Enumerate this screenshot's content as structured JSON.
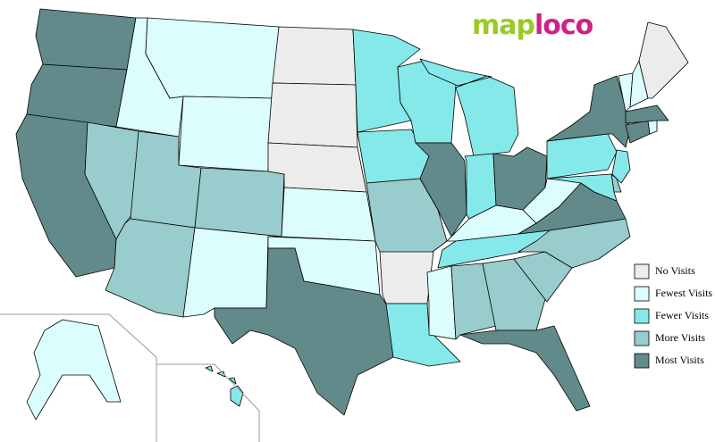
{
  "logo": [
    "map",
    "loco"
  ],
  "legend": [
    {
      "label": "No Visits",
      "color": "#ececec"
    },
    {
      "label": "Fewest Visits",
      "color": "#dcfdfd"
    },
    {
      "label": "Fewer Visits",
      "color": "#85e9e9"
    },
    {
      "label": "More Visits",
      "color": "#99cccc"
    },
    {
      "label": "Most Visits",
      "color": "#628a8a"
    }
  ],
  "regions": [
    4,
    4,
    4,
    1,
    3,
    1,
    1,
    3,
    3,
    3,
    1,
    0,
    0,
    0,
    1,
    1,
    4,
    2,
    2,
    3,
    0,
    2,
    2,
    4,
    2,
    2,
    4,
    1,
    2,
    1,
    3,
    3,
    4,
    3,
    3,
    4,
    1,
    2,
    4,
    2,
    3,
    2,
    4,
    1,
    4,
    1,
    1,
    0,
    1,
    2
  ]
}
